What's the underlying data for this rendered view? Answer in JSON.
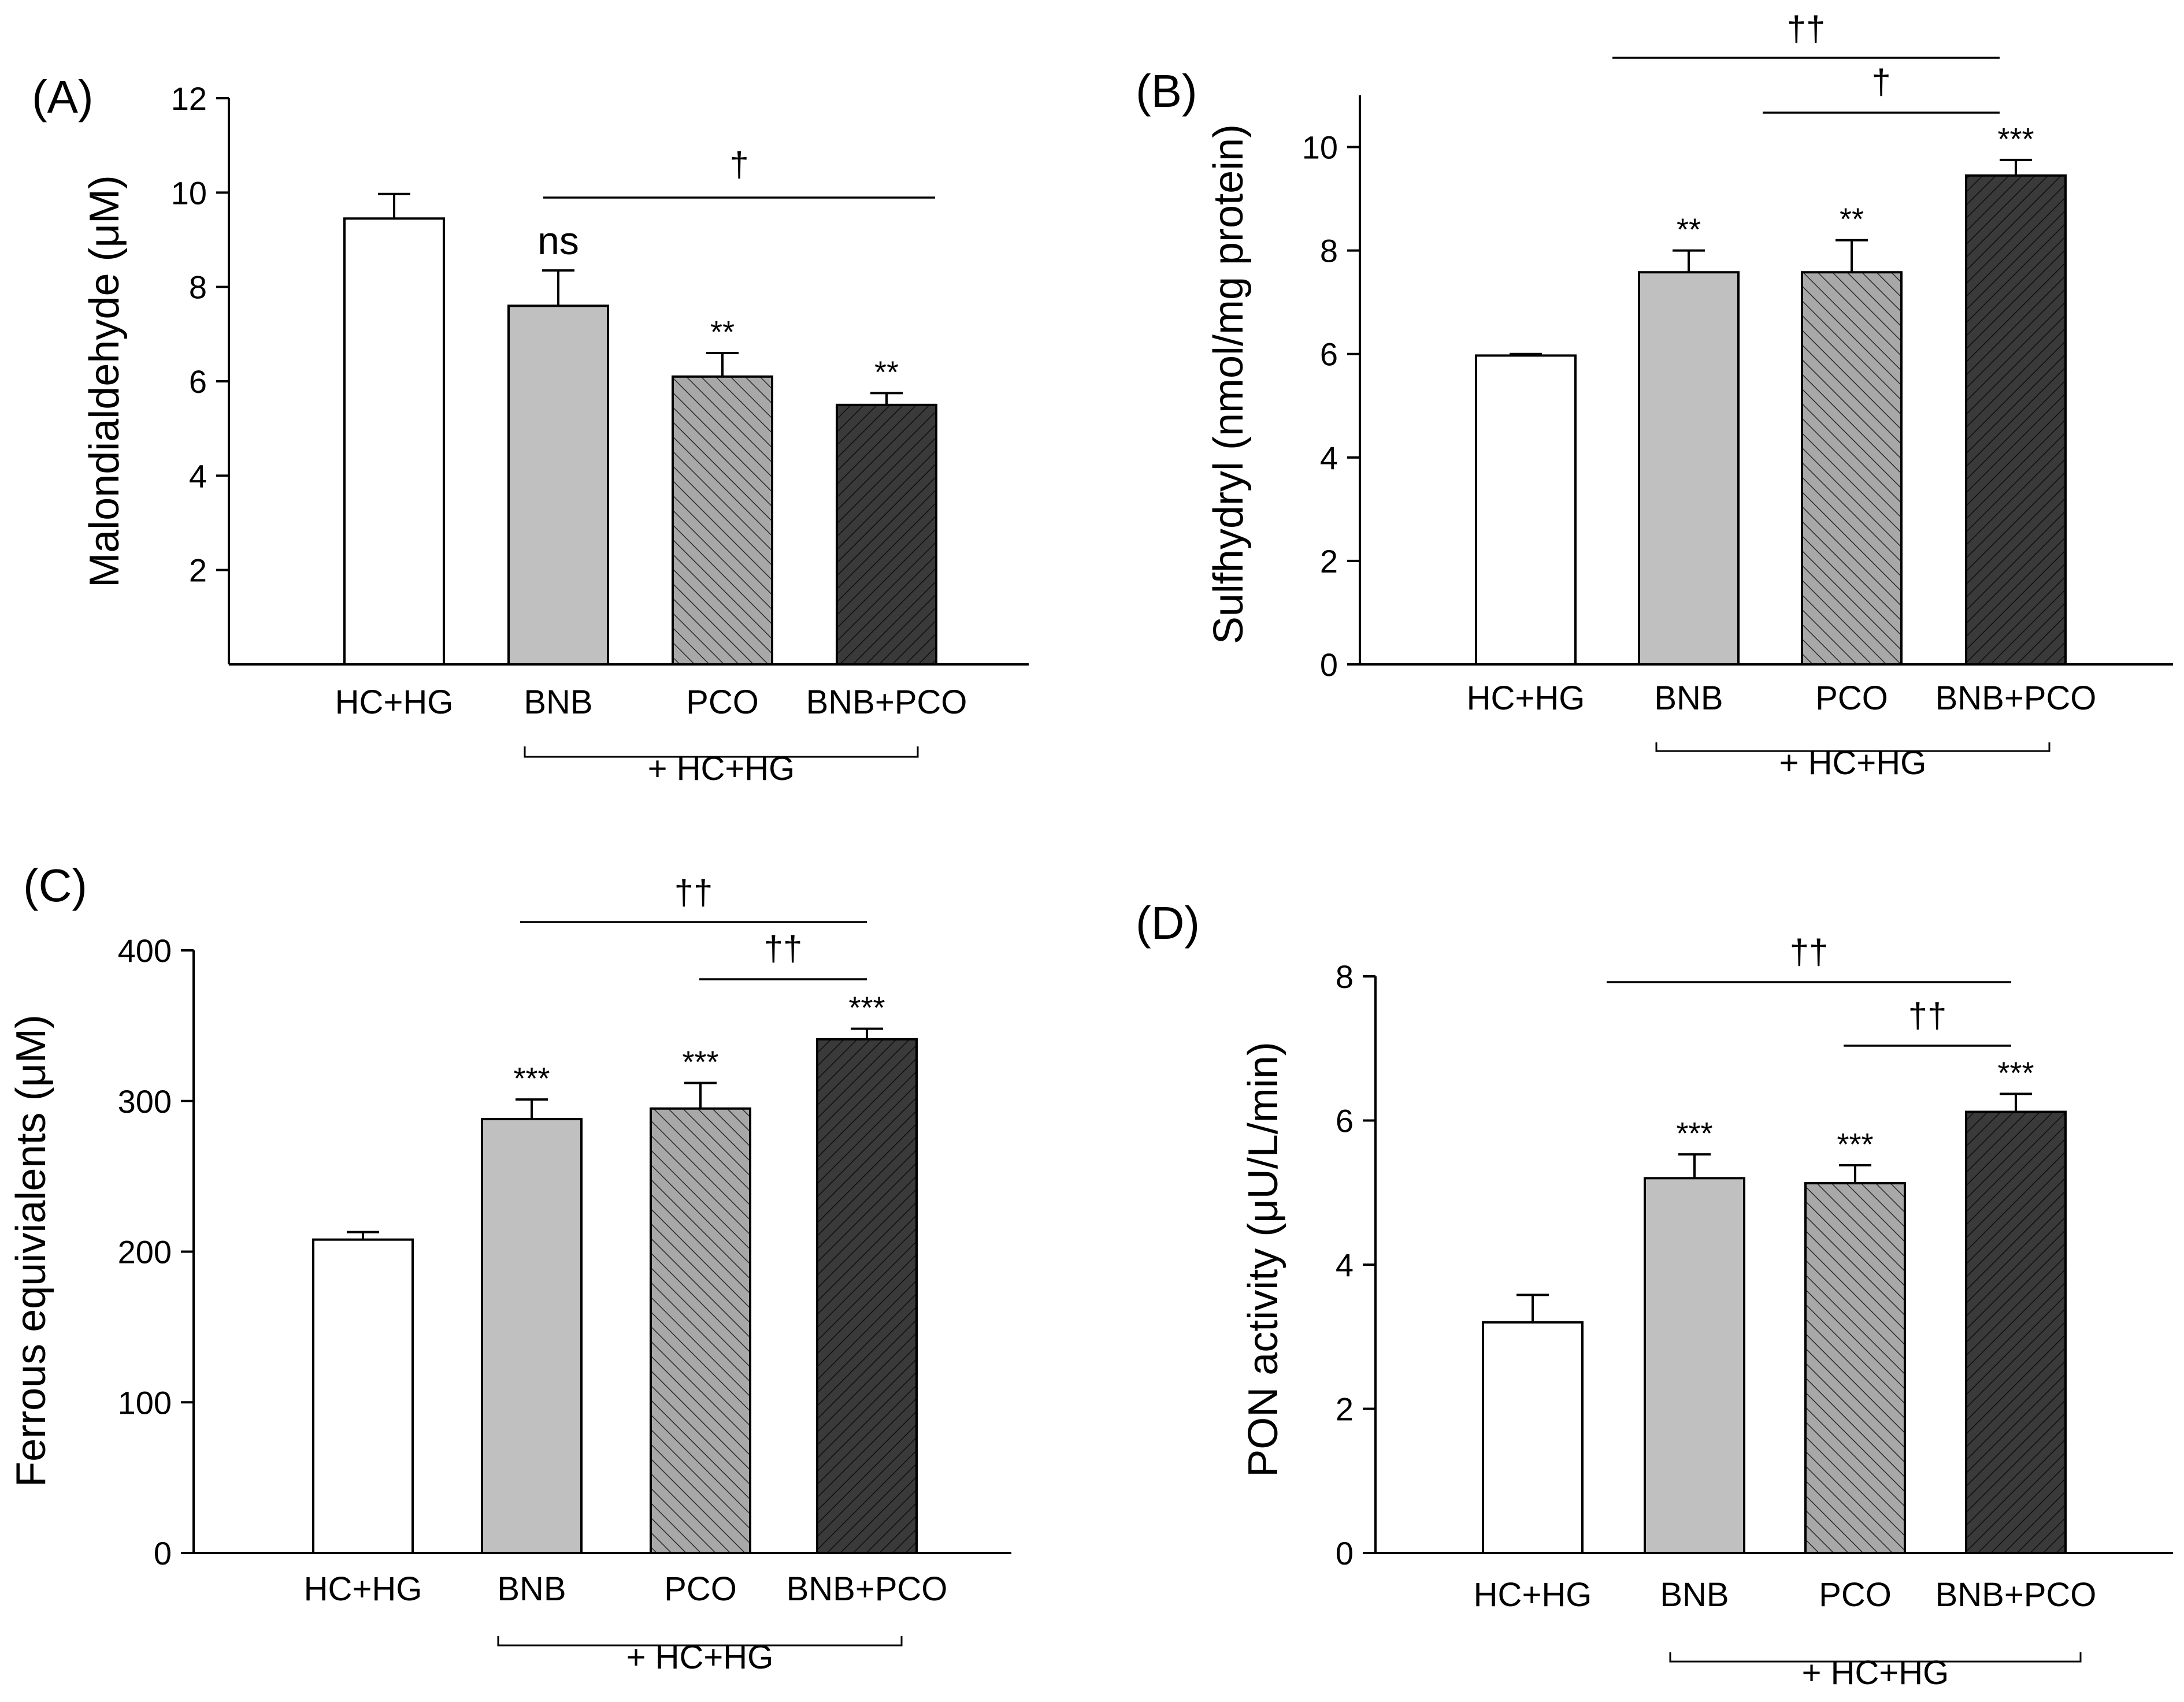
{
  "colors": {
    "bar_white": "#ffffff",
    "bar_light": "#c0c0c0",
    "bar_mid": "#a8a8a8",
    "bar_dark": "#3a3a3a",
    "ink": "#000000"
  },
  "chart_data": [
    {
      "type": "bar",
      "panel_label": "(A)",
      "ylabel": "Malondialdehyde (μM)",
      "categories": [
        "HC+HG",
        "BNB",
        "PCO",
        "BNB+PCO"
      ],
      "values": [
        9.45,
        7.6,
        6.1,
        5.5
      ],
      "errors": [
        0.52,
        0.75,
        0.5,
        0.25
      ],
      "significance": [
        "",
        "ns",
        "**",
        "**"
      ],
      "ylim": [
        0,
        12
      ],
      "yticks": [
        2,
        4,
        6,
        8,
        10,
        12
      ],
      "group_label": "+ HC+HG",
      "comparisons": [
        {
          "from": 1,
          "to": 3,
          "label": "†"
        }
      ]
    },
    {
      "type": "bar",
      "panel_label": "(B)",
      "ylabel": "Sulfhydryl (nmol/mg protein)",
      "categories": [
        "HC+HG",
        "BNB",
        "PCO",
        "BNB+PCO"
      ],
      "values": [
        5.97,
        7.58,
        7.58,
        9.45
      ],
      "errors": [
        0.03,
        0.42,
        0.62,
        0.3
      ],
      "significance": [
        "",
        "**",
        "**",
        "***"
      ],
      "ylim": [
        0,
        11
      ],
      "yticks": [
        0,
        2,
        4,
        6,
        8,
        10
      ],
      "group_label": "+ HC+HG",
      "comparisons": [
        {
          "from": 1,
          "to": 3,
          "label": "††"
        },
        {
          "from": 2,
          "to": 3,
          "label": "†"
        }
      ]
    },
    {
      "type": "bar",
      "panel_label": "(C)",
      "ylabel": "Ferrous equivialents (μM)",
      "categories": [
        "HC+HG",
        "BNB",
        "PCO",
        "BNB+PCO"
      ],
      "values": [
        208,
        288,
        295,
        341
      ],
      "errors": [
        5,
        13,
        17,
        7
      ],
      "significance": [
        "",
        "***",
        "***",
        "***"
      ],
      "ylim": [
        0,
        400
      ],
      "yticks": [
        0,
        100,
        200,
        300,
        400
      ],
      "group_label": "+ HC+HG",
      "comparisons": [
        {
          "from": 1,
          "to": 3,
          "label": "††"
        },
        {
          "from": 2,
          "to": 3,
          "label": "††"
        }
      ]
    },
    {
      "type": "bar",
      "panel_label": "(D)",
      "ylabel": "PON activity (μU/L/min)",
      "categories": [
        "HC+HG",
        "BNB",
        "PCO",
        "BNB+PCO"
      ],
      "values": [
        3.2,
        5.2,
        5.13,
        6.12
      ],
      "errors": [
        0.38,
        0.33,
        0.25,
        0.25
      ],
      "significance": [
        "",
        "***",
        "***",
        "***"
      ],
      "ylim": [
        0,
        8
      ],
      "yticks": [
        0,
        2,
        4,
        6,
        8
      ],
      "group_label": "+ HC+HG",
      "comparisons": [
        {
          "from": 1,
          "to": 3,
          "label": "††"
        },
        {
          "from": 2,
          "to": 3,
          "label": "††"
        }
      ]
    }
  ]
}
